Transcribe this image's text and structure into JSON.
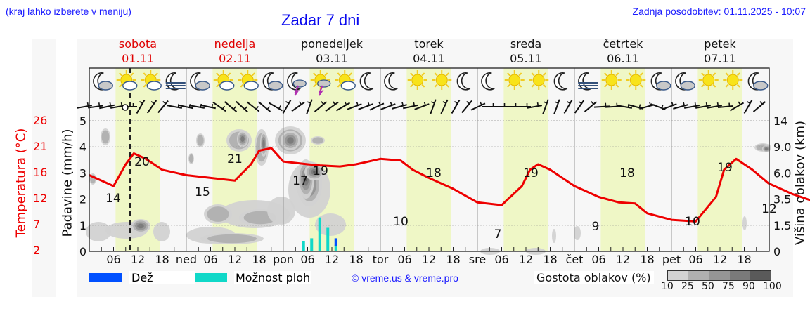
{
  "header": {
    "hint": "(kraj lahko izberete v meniju)",
    "title": "Zadar 7 dni",
    "updated": "Zadnja posodobitev: 01.11.2025 - 10:07"
  },
  "days": [
    {
      "name": "sobota",
      "date": "01.11",
      "weekend": true
    },
    {
      "name": "nedelja",
      "date": "02.11",
      "weekend": true
    },
    {
      "name": "ponedeljek",
      "date": "03.11",
      "weekend": false
    },
    {
      "name": "torek",
      "date": "04.11",
      "weekend": false
    },
    {
      "name": "sreda",
      "date": "05.11",
      "weekend": false
    },
    {
      "name": "četrtek",
      "date": "06.11",
      "weekend": false
    },
    {
      "name": "petek",
      "date": "07.11",
      "weekend": false
    }
  ],
  "axes": {
    "left_temp_label": "Temperatura (°C)",
    "left_temp_ticks": [
      "26",
      "21",
      "16",
      "12",
      "7",
      "2"
    ],
    "left_precip_label": "Padavine (mm/h)",
    "left_precip_ticks": [
      "5",
      "4",
      "3",
      "2",
      "1",
      "0"
    ],
    "right_label": "Višina oblakov (km)",
    "right_ticks": [
      "14",
      "9.0",
      "6.0",
      "3.5",
      "1.5",
      "0"
    ],
    "x_ticks": [
      "06",
      "12",
      "18",
      "ned",
      "06",
      "12",
      "18",
      "pon",
      "06",
      "12",
      "18",
      "tor",
      "06",
      "12",
      "18",
      "sre",
      "06",
      "12",
      "18",
      "čet",
      "06",
      "12",
      "18",
      "pet",
      "06",
      "12",
      "18"
    ]
  },
  "weather_icons": [
    "moon-cloud",
    "sun-cloud",
    "sun-cloud",
    "moon-fog",
    "moon-cloud",
    "sun-cloud",
    "sun-cloud",
    "moon-cloud",
    "moon-thunder",
    "sun-thunder",
    "sun-cloud",
    "moon",
    "moon",
    "sun",
    "sun",
    "moon",
    "moon",
    "sun",
    "sun",
    "moon",
    "moon-fog",
    "sun",
    "sun",
    "moon-cloud",
    "moon-cloud",
    "sun",
    "sun",
    "moon-cloud"
  ],
  "legend": {
    "rain_label": "Dež",
    "rain_color": "#0050ff",
    "showers_label": "Možnost ploh",
    "showers_color": "#10d8c8",
    "copyright": "© vreme.us & vreme.pro",
    "cloud_density_label": "Gostota oblakov (%)",
    "cloud_density_ticks": [
      "10",
      "25",
      "50",
      "75",
      "90",
      "100"
    ],
    "cloud_density_colors": [
      "#d2d2d2",
      "#b0b0b0",
      "#959595",
      "#7a7a7a",
      "#5a5a5a"
    ]
  },
  "colors": {
    "temperature": "#ee0000",
    "daylight": "#eff7c6",
    "background": "#f7f7f7"
  },
  "chart_data": {
    "type": "line",
    "title": "Zadar 7 dni",
    "xlabel": "",
    "ylabel": "Temperatura (°C)",
    "ylim": [
      2,
      26
    ],
    "series": [
      {
        "name": "Temperatura",
        "x_hours": [
          0,
          6,
          9,
          11,
          14,
          18,
          24,
          30,
          36,
          40,
          42,
          45,
          48,
          54,
          57,
          62,
          66,
          72,
          77,
          80,
          84,
          90,
          96,
          102,
          107,
          109,
          111,
          114,
          120,
          126,
          131,
          135,
          138,
          144,
          150,
          155,
          157,
          160,
          164,
          168,
          174,
          180,
          183,
          185,
          187,
          190,
          196,
          204,
          210,
          216,
          222,
          226,
          229,
          231,
          235,
          240,
          246,
          252,
          256,
          258,
          260,
          262,
          266
        ],
        "values": [
          16,
          14,
          18,
          20,
          19,
          17,
          16,
          15.5,
          15,
          18,
          20.5,
          21,
          18.5,
          18,
          17.8,
          17.6,
          18,
          19,
          18.7,
          17,
          15.5,
          13.5,
          11,
          10.5,
          14,
          17,
          18,
          17,
          14,
          12,
          11,
          10.8,
          9,
          7.8,
          7.5,
          12,
          17,
          19,
          17,
          14.5,
          12.5,
          11,
          9.8,
          9.5,
          12,
          17,
          18.5,
          15,
          13,
          12.5,
          11,
          10,
          11.5,
          15.5,
          19,
          20,
          17,
          16,
          15,
          14,
          13,
          12.5,
          12
        ]
      },
      {
        "name": "Možnost ploh (mm/h)",
        "x_hours": [
          53,
          55,
          57,
          59,
          61
        ],
        "values": [
          0.4,
          0.5,
          1.3,
          0.9,
          0.25
        ]
      },
      {
        "name": "Dež (mm/h)",
        "x_hours": [
          61
        ],
        "values": [
          0.5
        ]
      }
    ],
    "daily_labels": {
      "min": [
        14,
        15,
        17,
        10,
        7,
        9,
        10,
        12
      ],
      "max": [
        20,
        21,
        19,
        18,
        19,
        18,
        19
      ]
    },
    "precip_ylim": [
      0,
      5
    ],
    "cloud_height_ticks_km": [
      0,
      1.5,
      3.5,
      6.0,
      9.0,
      14
    ],
    "current_time_marker": "01.11 10:00",
    "grid": true
  }
}
